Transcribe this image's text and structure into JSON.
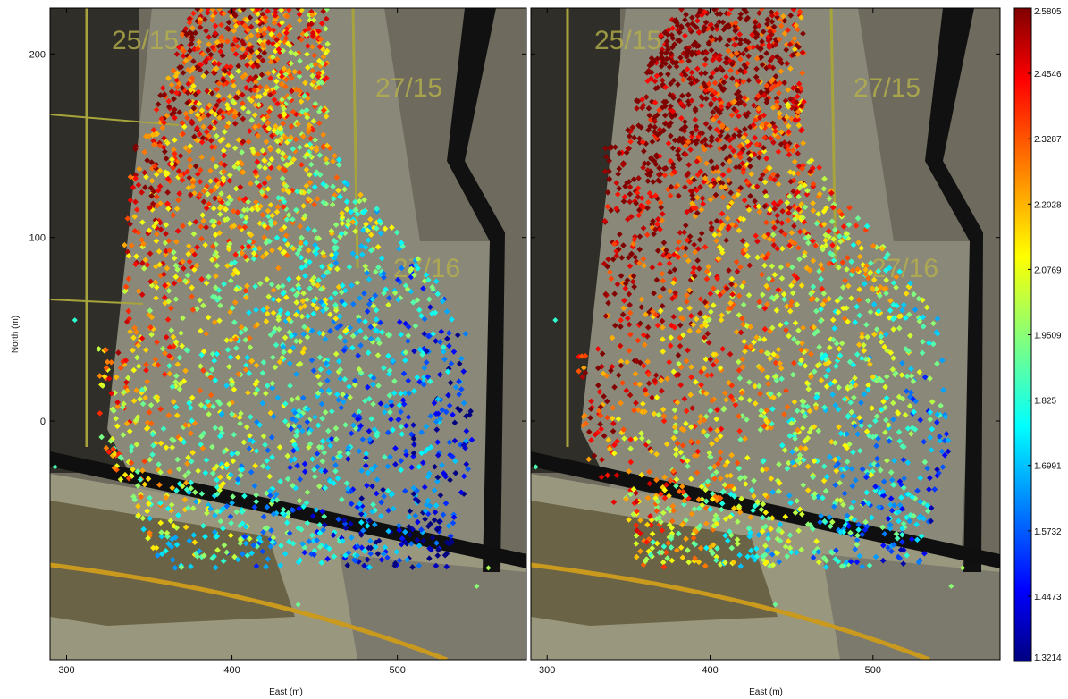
{
  "chart_data": {
    "type": "scatter",
    "xlabel": "East (m)",
    "ylabel": "North (m)",
    "xlim": [
      290,
      578
    ],
    "ylim": [
      -130,
      225
    ],
    "x_ticks": [
      300,
      400,
      500
    ],
    "y_ticks": [
      0,
      100,
      200
    ],
    "background": "aerial photograph of mine blast area with painted block labels",
    "overlay_labels": [
      "25/15",
      "27/15",
      "27/16"
    ],
    "colorbar": {
      "min": 1.3214,
      "max": 2.5805,
      "colormap": "jet",
      "tick_labels": [
        "2.5805",
        "2.4546",
        "2.3287",
        "2.2028",
        "2.0769",
        "1.9509",
        "1.825",
        "1.6991",
        "1.5732",
        "1.4473",
        "1.3214"
      ]
    },
    "panels": [
      {
        "name": "left",
        "seed": 11,
        "warm_bias": 0.0
      },
      {
        "name": "right",
        "seed": 29,
        "warm_bias": 0.18
      }
    ],
    "point_count_per_panel": 2600
  }
}
